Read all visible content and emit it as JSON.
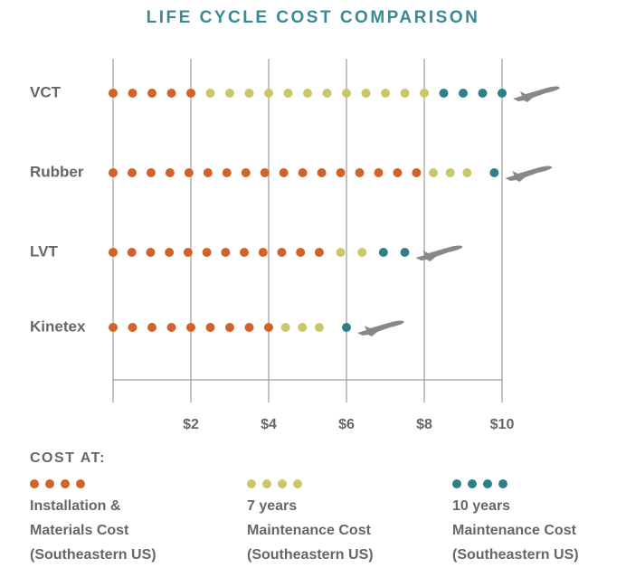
{
  "chart_data": {
    "type": "dotbar",
    "title": "LIFE CYCLE COST COMPARISON",
    "legend_title": "COST AT:",
    "categories": [
      "VCT",
      "Rubber",
      "LVT",
      "Kinetex"
    ],
    "series": [
      {
        "name": "Installation &\nMaterials Cost\n(Southeastern US)",
        "color": "#d2622a",
        "values": [
          2,
          7.8,
          5.3,
          4
        ]
      },
      {
        "name": "7 years\nMaintenance Cost\n(Southeastern US)",
        "color": "#c9c76a",
        "values": [
          6,
          1.3,
          1.1,
          1.3
        ]
      },
      {
        "name": "10 years\nMaintenance Cost\n(Southeastern US)",
        "color": "#2e7f8a",
        "values": [
          2,
          0.7,
          1.1,
          0.7
        ]
      }
    ],
    "xlim": [
      0,
      10
    ],
    "xticks": [
      {
        "value": 2,
        "label": "$2"
      },
      {
        "value": 4,
        "label": "$4"
      },
      {
        "value": 6,
        "label": "$6"
      },
      {
        "value": 8,
        "label": "$8"
      },
      {
        "value": 10,
        "label": "$10"
      }
    ],
    "grid": true
  }
}
